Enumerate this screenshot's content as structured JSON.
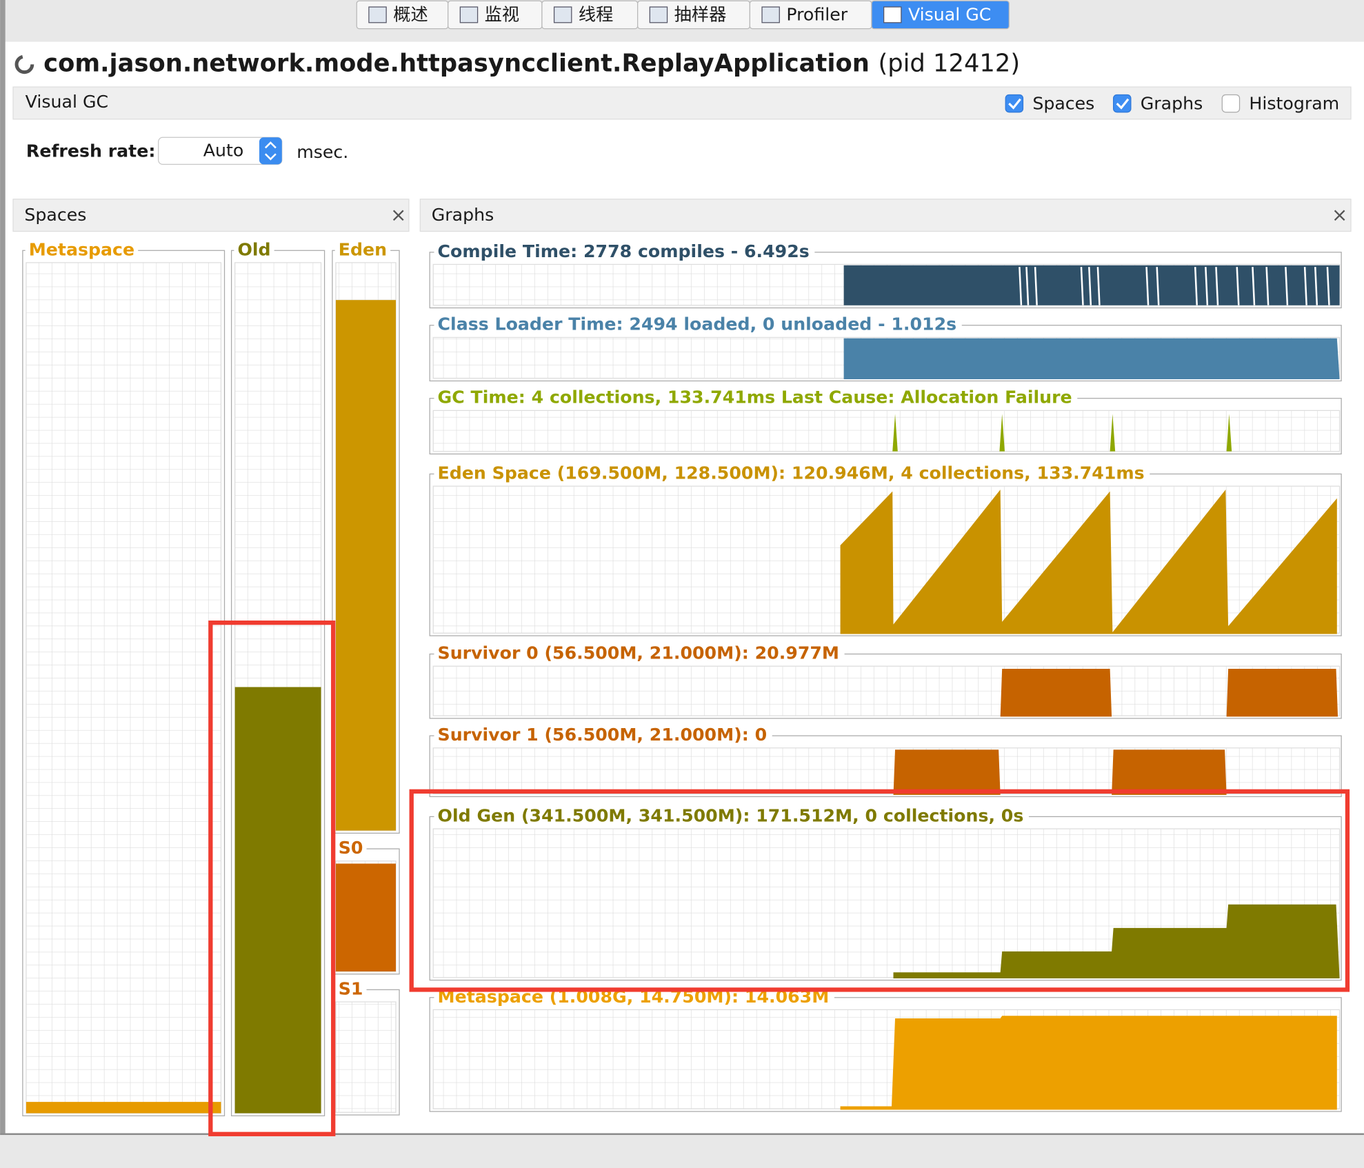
{
  "tabs": [
    "概述",
    "监视",
    "线程",
    "抽样器",
    "Profiler",
    "Visual GC"
  ],
  "header": {
    "app_name": "com.jason.network.mode.httpasyncclient.ReplayApplication",
    "pid": "(pid 12412)"
  },
  "panel_title": "Visual GC",
  "options": [
    {
      "label": "Spaces",
      "checked": true
    },
    {
      "label": "Graphs",
      "checked": true
    },
    {
      "label": "Histogram",
      "checked": false
    }
  ],
  "refresh": {
    "label": "Refresh rate:",
    "value": "Auto",
    "unit": "msec."
  },
  "spaces_panel": {
    "title": "Spaces",
    "labels": [
      "Metaspace",
      "Old",
      "Eden",
      "S0",
      "S1"
    ]
  },
  "graphs_panel": {
    "title": "Graphs",
    "graphs": [
      "Compile Time: 2778 compiles - 6.492s",
      "Class Loader Time: 2494 loaded, 0 unloaded - 1.012s",
      "GC Time: 4 collections, 133.741ms Last Cause: Allocation Failure",
      "Eden Space (169.500M, 128.500M): 120.946M, 4 collections, 133.741ms",
      "Survivor 0 (56.500M, 21.000M): 20.977M",
      "Survivor 1 (56.500M, 21.000M): 0",
      "Old Gen (341.500M, 341.500M): 171.512M, 0 collections, 0s",
      "Metaspace (1.008G, 14.750M): 14.063M"
    ]
  }
}
